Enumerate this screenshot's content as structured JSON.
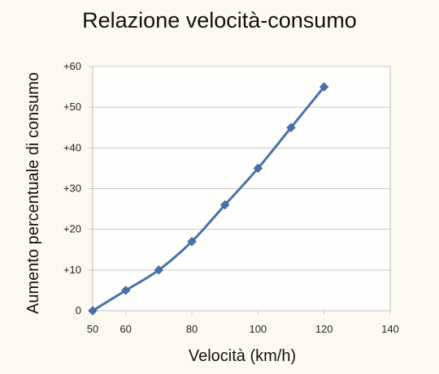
{
  "chart_data": {
    "type": "line",
    "title": "Relazione velocità-consumo",
    "xlabel": "Velocità (km/h)",
    "ylabel": "Aumento percentuale di consumo",
    "xlim": [
      50,
      140
    ],
    "ylim": [
      0,
      60
    ],
    "x_ticks": [
      50,
      60,
      80,
      100,
      120,
      140
    ],
    "y_ticks": [
      {
        "value": 0,
        "label": "0"
      },
      {
        "value": 10,
        "label": "+10"
      },
      {
        "value": 20,
        "label": "+20"
      },
      {
        "value": 30,
        "label": "+30"
      },
      {
        "value": 40,
        "label": "+40"
      },
      {
        "value": 50,
        "label": "+50"
      },
      {
        "value": 60,
        "label": "+60"
      }
    ],
    "grid": true,
    "legend": false,
    "series": [
      {
        "color": "#4a72aa",
        "marker": "diamond",
        "x": [
          50,
          60,
          70,
          80,
          90,
          100,
          110,
          120
        ],
        "y": [
          0,
          5,
          10,
          17,
          26,
          35,
          45,
          55
        ]
      }
    ]
  }
}
